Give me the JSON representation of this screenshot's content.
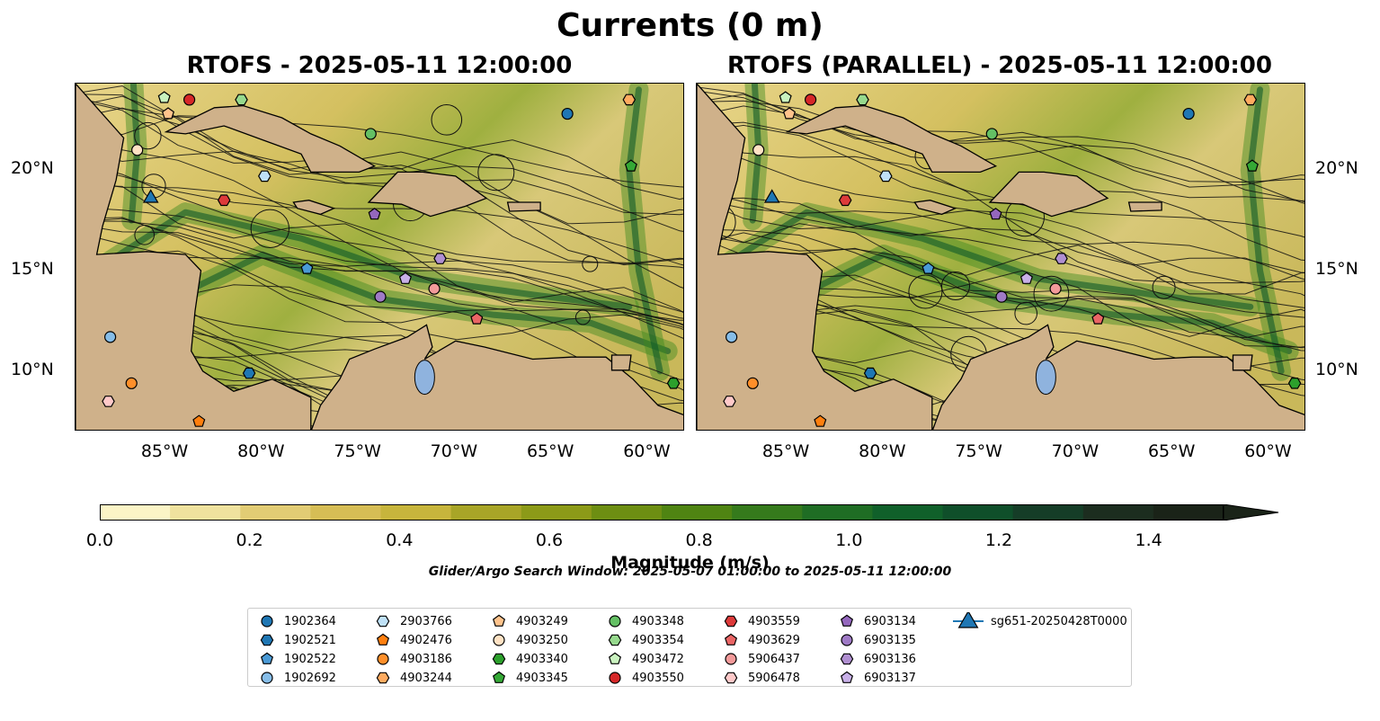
{
  "figure": {
    "title": "Currents (0 m)",
    "panels": [
      {
        "title": "RTOFS - 2025-05-11 12:00:00"
      },
      {
        "title": "RTOFS (PARALLEL) - 2025-05-11 12:00:00"
      }
    ],
    "lon_ticks": [
      "85°W",
      "80°W",
      "75°W",
      "70°W",
      "65°W",
      "60°W"
    ],
    "lat_ticks": [
      "20°N",
      "15°N",
      "10°N"
    ],
    "colorbar": {
      "label": "Magnitude (m/s)",
      "ticks": [
        "0.0",
        "0.2",
        "0.4",
        "0.6",
        "0.8",
        "1.0",
        "1.2",
        "1.4"
      ],
      "range": [
        0,
        1.5
      ],
      "colors": [
        "#fbf4c6",
        "#efe29e",
        "#e2cc74",
        "#d6bd55",
        "#c7b53c",
        "#a8a527",
        "#8c9a18",
        "#6d8e12",
        "#4f8412",
        "#357a1c",
        "#1f6d24",
        "#10602a",
        "#0f4f2a",
        "#153d27",
        "#1c2d1f",
        "#1a2318"
      ]
    },
    "search_window": "Glider/Argo Search Window: 2025-05-07 01:00:00 to 2025-05-11 12:00:00",
    "land_color": "#cfb18a",
    "lake_color": "#8fb3de"
  },
  "legend": [
    {
      "id": "1902364",
      "marker": "circle",
      "color": "#1f77b4"
    },
    {
      "id": "1902521",
      "marker": "hexagon",
      "color": "#1f77b4"
    },
    {
      "id": "1902522",
      "marker": "pentagon",
      "color": "#4a9ad6"
    },
    {
      "id": "1902692",
      "marker": "circle",
      "color": "#86bde8"
    },
    {
      "id": "2903766",
      "marker": "hexagon",
      "color": "#bfe1f7"
    },
    {
      "id": "4902476",
      "marker": "pentagon",
      "color": "#ff7f0e"
    },
    {
      "id": "4903186",
      "marker": "circle",
      "color": "#ff8f2a"
    },
    {
      "id": "4903244",
      "marker": "hexagon",
      "color": "#ffab60"
    },
    {
      "id": "4903249",
      "marker": "pentagon",
      "color": "#ffc38c"
    },
    {
      "id": "4903250",
      "marker": "circle",
      "color": "#ffe2c4"
    },
    {
      "id": "4903340",
      "marker": "hexagon",
      "color": "#2ca02c"
    },
    {
      "id": "4903345",
      "marker": "pentagon",
      "color": "#34a835"
    },
    {
      "id": "4903348",
      "marker": "circle",
      "color": "#64c064"
    },
    {
      "id": "4903354",
      "marker": "hexagon",
      "color": "#96d98d"
    },
    {
      "id": "4903472",
      "marker": "pentagon",
      "color": "#c9f2bf"
    },
    {
      "id": "4903550",
      "marker": "circle",
      "color": "#d62728"
    },
    {
      "id": "4903559",
      "marker": "hexagon",
      "color": "#dd3a3a"
    },
    {
      "id": "4903629",
      "marker": "pentagon",
      "color": "#ea6565"
    },
    {
      "id": "5906437",
      "marker": "circle",
      "color": "#f39a9a"
    },
    {
      "id": "5906478",
      "marker": "hexagon",
      "color": "#ffc9c9"
    },
    {
      "id": "6903134",
      "marker": "pentagon",
      "color": "#9467bd"
    },
    {
      "id": "6903135",
      "marker": "circle",
      "color": "#9f7ac6"
    },
    {
      "id": "6903136",
      "marker": "hexagon",
      "color": "#b08fd1"
    },
    {
      "id": "6903137",
      "marker": "pentagon",
      "color": "#c8b0e8"
    },
    {
      "id": "sg651-20250428T0000",
      "marker": "triangle",
      "color": "#1f77b4"
    }
  ],
  "floats": [
    {
      "id": "1902364",
      "lon": -64.2,
      "lat": 22.8
    },
    {
      "id": "1902521",
      "lon": -80.7,
      "lat": 9.9
    },
    {
      "id": "1902522",
      "lon": -77.7,
      "lat": 15.1
    },
    {
      "id": "1902692",
      "lon": -87.9,
      "lat": 11.7
    },
    {
      "id": "2903766",
      "lon": -79.9,
      "lat": 19.7
    },
    {
      "id": "4902476",
      "lon": -83.3,
      "lat": 7.5
    },
    {
      "id": "4903186",
      "lon": -86.8,
      "lat": 9.4
    },
    {
      "id": "4903244",
      "lon": -61.0,
      "lat": 23.5
    },
    {
      "id": "4903249",
      "lon": -84.9,
      "lat": 22.8
    },
    {
      "id": "4903250",
      "lon": -86.5,
      "lat": 21.0
    },
    {
      "id": "4903340",
      "lon": -58.7,
      "lat": 9.4
    },
    {
      "id": "4903345",
      "lon": -60.9,
      "lat": 20.2
    },
    {
      "id": "4903348",
      "lon": -74.4,
      "lat": 21.8
    },
    {
      "id": "4903354",
      "lon": -81.1,
      "lat": 23.5
    },
    {
      "id": "4903472",
      "lon": -85.1,
      "lat": 23.6
    },
    {
      "id": "4903550",
      "lon": -83.8,
      "lat": 23.5
    },
    {
      "id": "4903559",
      "lon": -82.0,
      "lat": 18.5
    },
    {
      "id": "4903629",
      "lon": -68.9,
      "lat": 12.6
    },
    {
      "id": "5906437",
      "lon": -71.1,
      "lat": 14.1
    },
    {
      "id": "5906478",
      "lon": -88.0,
      "lat": 8.5
    },
    {
      "id": "6903134",
      "lon": -74.2,
      "lat": 17.8
    },
    {
      "id": "6903135",
      "lon": -73.9,
      "lat": 13.7
    },
    {
      "id": "6903136",
      "lon": -70.8,
      "lat": 15.6
    },
    {
      "id": "6903137",
      "lon": -72.6,
      "lat": 14.6
    },
    {
      "id": "sg651-20250428T0000",
      "lon": -85.8,
      "lat": 18.6
    }
  ]
}
